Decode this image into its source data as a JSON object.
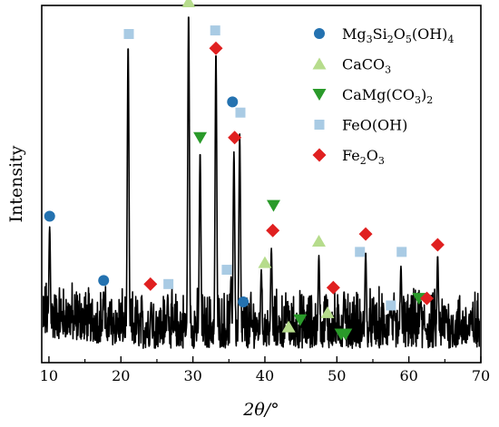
{
  "chart_data": {
    "type": "line",
    "xlabel": "2θ/°",
    "ylabel": "Intensity",
    "xlim": [
      9,
      70
    ],
    "ylim": [
      0,
      100
    ],
    "x_ticks": [
      10,
      20,
      30,
      40,
      50,
      60,
      70
    ],
    "x_tick_labels": [
      "10",
      "20",
      "30",
      "40",
      "50",
      "60",
      "70"
    ],
    "y_ticks_shown": false,
    "grid": false,
    "legend_position": "top-right",
    "pattern": {
      "name": "XRD pattern",
      "color": "#000000",
      "baseline": 4,
      "noise_range": [
        0,
        18
      ],
      "peaks": [
        {
          "x": 10.1,
          "y": 36
        },
        {
          "x": 17.6,
          "y": 18
        },
        {
          "x": 21.0,
          "y": 87
        },
        {
          "x": 24.2,
          "y": 15
        },
        {
          "x": 26.5,
          "y": 17
        },
        {
          "x": 29.4,
          "y": 96
        },
        {
          "x": 31.0,
          "y": 57
        },
        {
          "x": 33.2,
          "y": 85
        },
        {
          "x": 35.3,
          "y": 22
        },
        {
          "x": 35.7,
          "y": 57
        },
        {
          "x": 36.5,
          "y": 62
        },
        {
          "x": 39.5,
          "y": 24
        },
        {
          "x": 40.9,
          "y": 30
        },
        {
          "x": 43.1,
          "y": 15
        },
        {
          "x": 47.5,
          "y": 28
        },
        {
          "x": 48.5,
          "y": 17
        },
        {
          "x": 51.0,
          "y": 18
        },
        {
          "x": 54.0,
          "y": 29
        },
        {
          "x": 57.4,
          "y": 14
        },
        {
          "x": 58.9,
          "y": 25
        },
        {
          "x": 61.6,
          "y": 16
        },
        {
          "x": 64.0,
          "y": 28
        },
        {
          "x": 65.2,
          "y": 13
        }
      ]
    },
    "legend": [
      {
        "key": "mg",
        "formula_parts": [
          {
            "t": "Mg"
          },
          {
            "t": "3",
            "sub": true
          },
          {
            "t": "Si"
          },
          {
            "t": "2",
            "sub": true
          },
          {
            "t": "O"
          },
          {
            "t": "5",
            "sub": true
          },
          {
            "t": "(OH)"
          },
          {
            "t": "4",
            "sub": true
          }
        ],
        "marker": "circle",
        "color": "#2472b0"
      },
      {
        "key": "caco3",
        "formula_parts": [
          {
            "t": "CaCO"
          },
          {
            "t": "3",
            "sub": true
          }
        ],
        "marker": "triangle-up",
        "color": "#b6dc8c"
      },
      {
        "key": "camg",
        "formula_parts": [
          {
            "t": "CaMg(CO"
          },
          {
            "t": "3",
            "sub": true
          },
          {
            "t": ")"
          },
          {
            "t": "2",
            "sub": true
          }
        ],
        "marker": "triangle-down",
        "color": "#2a9a2a"
      },
      {
        "key": "feooh",
        "formula_parts": [
          {
            "t": "FeO(OH)"
          }
        ],
        "marker": "square",
        "color": "#a9cbe4"
      },
      {
        "key": "fe2o3",
        "formula_parts": [
          {
            "t": "Fe"
          },
          {
            "t": "2",
            "sub": true
          },
          {
            "t": "O"
          },
          {
            "t": "3",
            "sub": true
          }
        ],
        "marker": "diamond",
        "color": "#e02020"
      }
    ],
    "markers": [
      {
        "phase": "mg",
        "x": 10.1,
        "y": 41
      },
      {
        "phase": "mg",
        "x": 17.6,
        "y": 23
      },
      {
        "phase": "mg",
        "x": 35.5,
        "y": 73
      },
      {
        "phase": "mg",
        "x": 37.0,
        "y": 17
      },
      {
        "phase": "caco3",
        "x": 29.4,
        "y": 101
      },
      {
        "phase": "caco3",
        "x": 40.0,
        "y": 28
      },
      {
        "phase": "caco3",
        "x": 43.3,
        "y": 10
      },
      {
        "phase": "caco3",
        "x": 47.5,
        "y": 34
      },
      {
        "phase": "caco3",
        "x": 48.7,
        "y": 14
      },
      {
        "phase": "camg",
        "x": 31.0,
        "y": 63
      },
      {
        "phase": "camg",
        "x": 41.2,
        "y": 44
      },
      {
        "phase": "camg",
        "x": 44.9,
        "y": 12
      },
      {
        "phase": "camg",
        "x": 50.6,
        "y": 8
      },
      {
        "phase": "camg",
        "x": 51.2,
        "y": 8
      },
      {
        "phase": "camg",
        "x": 61.4,
        "y": 18
      },
      {
        "phase": "feooh",
        "x": 21.1,
        "y": 92
      },
      {
        "phase": "feooh",
        "x": 26.6,
        "y": 22
      },
      {
        "phase": "feooh",
        "x": 33.1,
        "y": 93
      },
      {
        "phase": "feooh",
        "x": 34.7,
        "y": 26
      },
      {
        "phase": "feooh",
        "x": 36.6,
        "y": 70
      },
      {
        "phase": "feooh",
        "x": 53.2,
        "y": 31
      },
      {
        "phase": "feooh",
        "x": 57.5,
        "y": 16
      },
      {
        "phase": "feooh",
        "x": 59.0,
        "y": 31
      },
      {
        "phase": "fe2o3",
        "x": 24.1,
        "y": 22
      },
      {
        "phase": "fe2o3",
        "x": 33.2,
        "y": 88
      },
      {
        "phase": "fe2o3",
        "x": 35.8,
        "y": 63
      },
      {
        "phase": "fe2o3",
        "x": 41.1,
        "y": 37
      },
      {
        "phase": "fe2o3",
        "x": 49.5,
        "y": 21
      },
      {
        "phase": "fe2o3",
        "x": 54.0,
        "y": 36
      },
      {
        "phase": "fe2o3",
        "x": 62.5,
        "y": 18
      },
      {
        "phase": "fe2o3",
        "x": 64.0,
        "y": 33
      }
    ]
  }
}
